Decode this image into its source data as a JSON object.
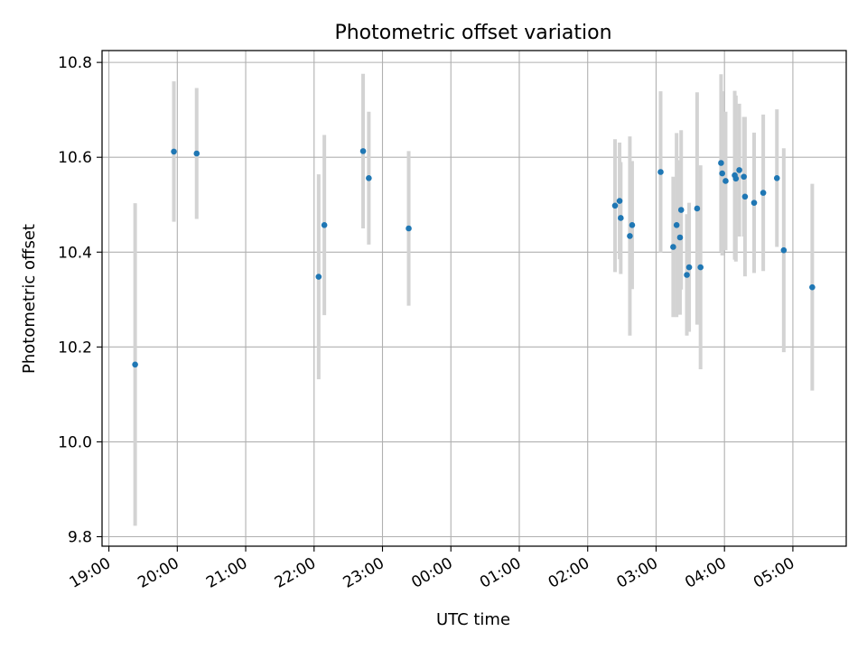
{
  "chart_data": {
    "type": "scatter",
    "title": "Photometric offset variation",
    "xlabel": "UTC time",
    "ylabel": "Photometric offset",
    "x_ticks": [
      "19:00",
      "20:00",
      "21:00",
      "22:00",
      "23:00",
      "00:00",
      "01:00",
      "02:00",
      "03:00",
      "04:00",
      "05:00"
    ],
    "x_tick_hours": [
      19,
      20,
      21,
      22,
      23,
      24,
      25,
      26,
      27,
      28,
      29
    ],
    "xlim": [
      18.9,
      29.78
    ],
    "y_ticks": [
      "9.8",
      "10.0",
      "10.2",
      "10.4",
      "10.6",
      "10.8"
    ],
    "y_tick_values": [
      9.8,
      10.0,
      10.2,
      10.4,
      10.6,
      10.8
    ],
    "ylim": [
      9.78,
      10.825
    ],
    "grid": true,
    "colors": {
      "point": "#1f77b4",
      "errorbar": "#d3d3d3",
      "grid": "#b0b0b0"
    },
    "points": [
      {
        "t": "19:23",
        "y": 10.163,
        "err": 0.34
      },
      {
        "t": "19:57",
        "y": 10.612,
        "err": 0.148
      },
      {
        "t": "20:17",
        "y": 10.608,
        "err": 0.138
      },
      {
        "t": "22:04",
        "y": 10.348,
        "err": 0.216
      },
      {
        "t": "22:09",
        "y": 10.457,
        "err": 0.19
      },
      {
        "t": "22:43",
        "y": 10.613,
        "err": 0.163
      },
      {
        "t": "22:48",
        "y": 10.556,
        "err": 0.14
      },
      {
        "t": "23:23",
        "y": 10.45,
        "err": 0.163
      },
      {
        "t": "02:24",
        "y": 10.498,
        "err": 0.14
      },
      {
        "t": "02:28",
        "y": 10.508,
        "err": 0.123
      },
      {
        "t": "02:29",
        "y": 10.472,
        "err": 0.118
      },
      {
        "t": "02:37",
        "y": 10.434,
        "err": 0.21
      },
      {
        "t": "02:39",
        "y": 10.457,
        "err": 0.135
      },
      {
        "t": "03:04",
        "y": 10.569,
        "err": 0.17
      },
      {
        "t": "03:15",
        "y": 10.411,
        "err": 0.148
      },
      {
        "t": "03:18",
        "y": 10.457,
        "err": 0.194
      },
      {
        "t": "03:21",
        "y": 10.431,
        "err": 0.163
      },
      {
        "t": "03:22",
        "y": 10.489,
        "err": 0.168
      },
      {
        "t": "03:27",
        "y": 10.352,
        "err": 0.128
      },
      {
        "t": "03:29",
        "y": 10.368,
        "err": 0.136
      },
      {
        "t": "03:36",
        "y": 10.492,
        "err": 0.245
      },
      {
        "t": "03:39",
        "y": 10.368,
        "err": 0.215
      },
      {
        "t": "03:57",
        "y": 10.588,
        "err": 0.187
      },
      {
        "t": "03:58",
        "y": 10.566,
        "err": 0.173
      },
      {
        "t": "04:01",
        "y": 10.55,
        "err": 0.146
      },
      {
        "t": "04:09",
        "y": 10.562,
        "err": 0.178
      },
      {
        "t": "04:10",
        "y": 10.555,
        "err": 0.175
      },
      {
        "t": "04:13",
        "y": 10.573,
        "err": 0.14
      },
      {
        "t": "04:17",
        "y": 10.559,
        "err": 0.126
      },
      {
        "t": "04:18",
        "y": 10.517,
        "err": 0.168
      },
      {
        "t": "04:26",
        "y": 10.504,
        "err": 0.148
      },
      {
        "t": "04:34",
        "y": 10.525,
        "err": 0.165
      },
      {
        "t": "04:46",
        "y": 10.556,
        "err": 0.145
      },
      {
        "t": "04:52",
        "y": 10.404,
        "err": 0.215
      },
      {
        "t": "05:17",
        "y": 10.326,
        "err": 0.218
      }
    ]
  }
}
